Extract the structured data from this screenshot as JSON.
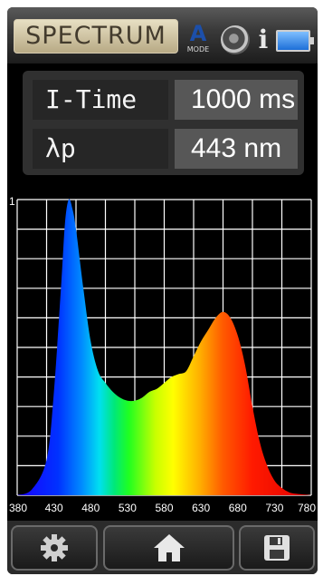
{
  "header": {
    "title": "SPECTRUM",
    "mode_letter": "A",
    "mode_label": "MODE"
  },
  "readings": {
    "integration_time_label": "I-Time",
    "integration_time_value": "1000 ms",
    "peak_label": "λp",
    "peak_value": "443 nm"
  },
  "chart_data": {
    "type": "area",
    "x": [
      380,
      400,
      420,
      430,
      440,
      445,
      450,
      455,
      460,
      470,
      480,
      490,
      500,
      510,
      520,
      530,
      540,
      550,
      560,
      570,
      580,
      590,
      600,
      610,
      620,
      630,
      640,
      650,
      660,
      670,
      680,
      690,
      700,
      710,
      720,
      730,
      740,
      750,
      760,
      780
    ],
    "values": [
      0.0,
      0.02,
      0.12,
      0.35,
      0.72,
      0.92,
      1.0,
      0.97,
      0.9,
      0.7,
      0.52,
      0.42,
      0.38,
      0.35,
      0.33,
      0.32,
      0.32,
      0.33,
      0.35,
      0.36,
      0.38,
      0.4,
      0.41,
      0.42,
      0.47,
      0.52,
      0.56,
      0.6,
      0.62,
      0.6,
      0.54,
      0.44,
      0.3,
      0.18,
      0.1,
      0.05,
      0.025,
      0.01,
      0.005,
      0.0
    ],
    "ytick_label": "1",
    "xlabel": "",
    "ylabel": "",
    "xticks": [
      "380",
      "430",
      "480",
      "530",
      "580",
      "630",
      "680",
      "730",
      "780"
    ],
    "xlim": [
      380,
      780
    ],
    "ylim": [
      0,
      1
    ],
    "grid": true,
    "fill": "wavelength colour gradient"
  },
  "toolbar": {
    "settings_icon": "gear-icon",
    "home_icon": "home-icon",
    "save_icon": "floppy-disk-icon"
  },
  "colors": {
    "grid": "#ffffff",
    "background": "#000000",
    "title_bg": "#d8cdb0",
    "mode_blue": "#1c4faa"
  }
}
